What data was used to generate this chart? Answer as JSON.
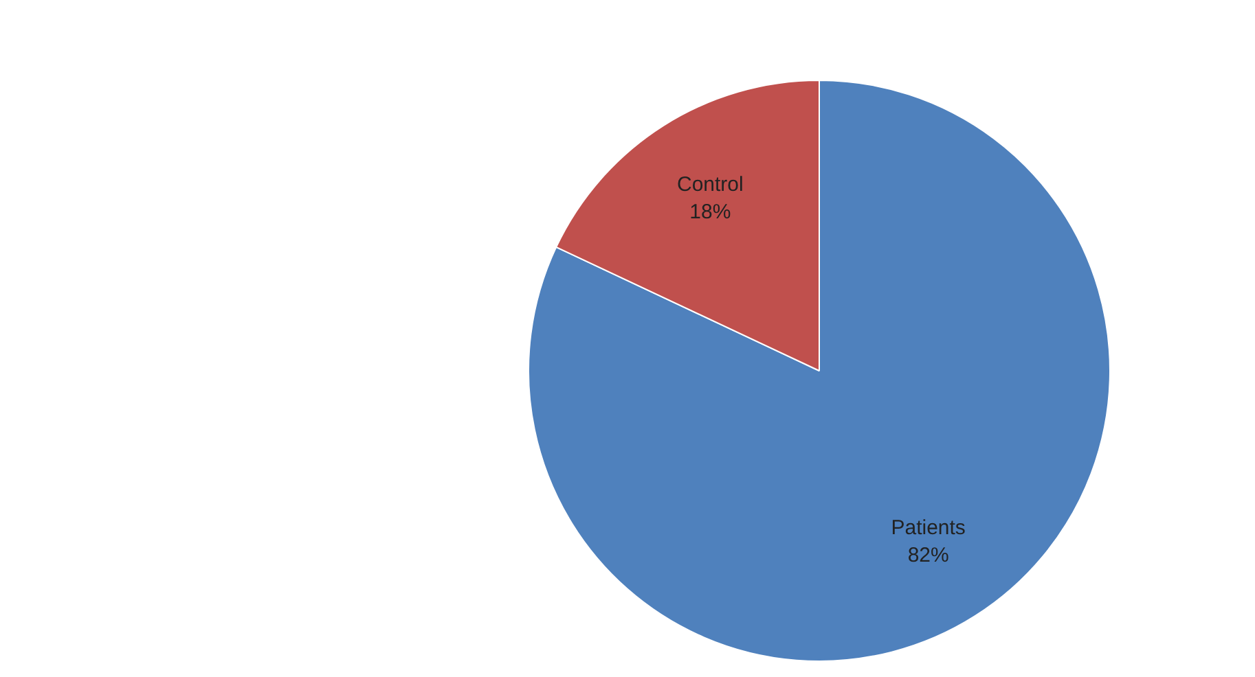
{
  "chart_data": {
    "type": "pie",
    "categories": [
      "Patients",
      "Control"
    ],
    "values": [
      82,
      18
    ],
    "colors": [
      "#4f81bd",
      "#c0504d"
    ],
    "value_labels": [
      "82%",
      "18%"
    ],
    "legend": false
  }
}
